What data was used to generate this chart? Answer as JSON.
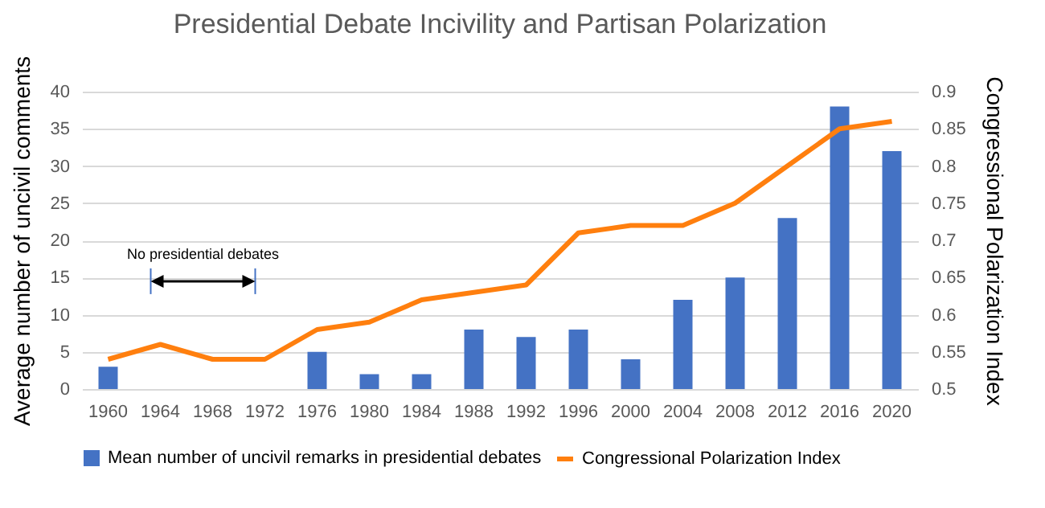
{
  "chart_data": {
    "type": "bar",
    "title": "Presidential Debate Incivility and Partisan Polarization",
    "ylabel": "Average number of uncivil comments",
    "y2label": "Congressional Polarization Index",
    "categories": [
      "1960",
      "1964",
      "1968",
      "1972",
      "1976",
      "1980",
      "1984",
      "1988",
      "1992",
      "1996",
      "2000",
      "2004",
      "2008",
      "2012",
      "2016",
      "2020"
    ],
    "series": [
      {
        "name": "Mean number of uncivil remarks in presidential debates",
        "color": "#4472c4",
        "values": [
          3,
          null,
          null,
          null,
          5,
          2,
          2,
          8,
          7,
          8,
          4,
          12,
          15,
          23,
          38,
          32
        ]
      },
      {
        "name": "Congressional Polarization Index",
        "type": "line",
        "axis": "y2",
        "color": "#ff7f0e",
        "values": [
          0.54,
          0.56,
          0.54,
          0.54,
          0.58,
          0.59,
          0.62,
          0.63,
          0.64,
          0.71,
          0.72,
          0.72,
          0.75,
          0.8,
          0.85,
          0.86
        ]
      }
    ],
    "ylim": [
      0,
      40
    ],
    "yticks": [
      0,
      5,
      10,
      15,
      20,
      25,
      30,
      35,
      40
    ],
    "y2lim": [
      0.5,
      0.9
    ],
    "y2ticks": [
      0.5,
      0.55,
      0.6,
      0.65,
      0.7,
      0.75,
      0.8,
      0.85,
      0.9
    ],
    "annotations": [
      "No presidential debates"
    ],
    "grid": "y",
    "legend": "bottom",
    "line_style": "solid",
    "marker": "none"
  }
}
